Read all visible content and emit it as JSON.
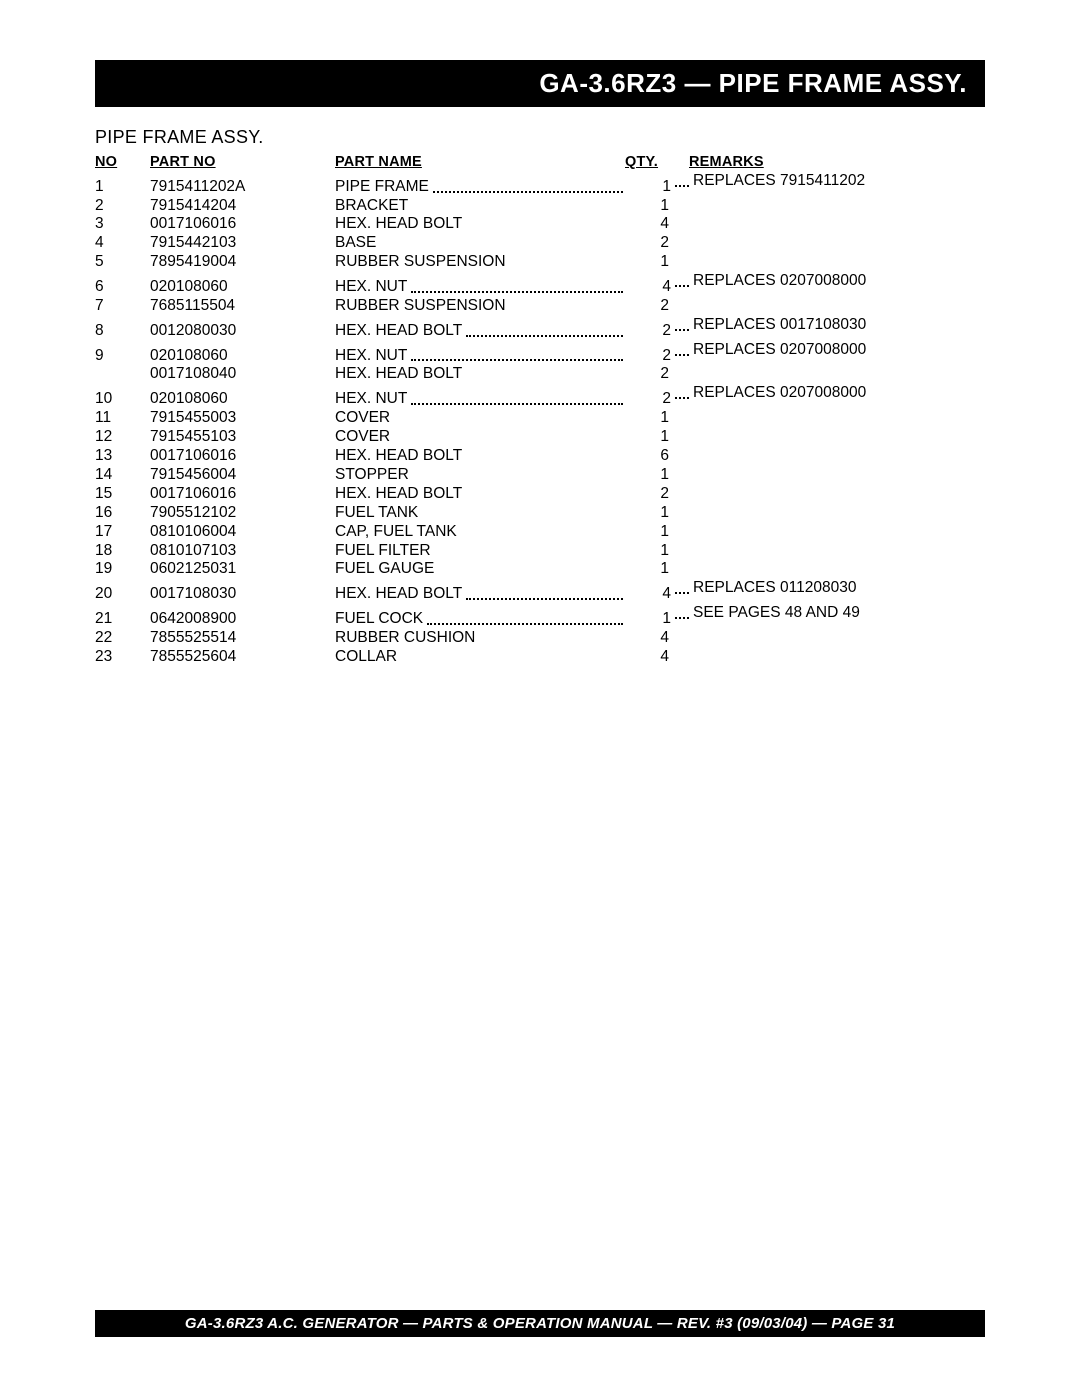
{
  "title_bar": "GA-3.6RZ3 — PIPE FRAME ASSY.",
  "subtitle": "PIPE FRAME ASSY.",
  "headers": {
    "no": "NO",
    "partno": "PART NO",
    "partname": "PART NAME",
    "qty": "QTY.",
    "remarks": "REMARKS"
  },
  "rows": [
    {
      "no": "1",
      "partno": "7915411202A",
      "name": "PIPE FRAME",
      "qty": "1",
      "remarks": "REPLACES 7915411202",
      "dotted": true
    },
    {
      "no": "2",
      "partno": "7915414204",
      "name": "BRACKET",
      "qty": "1",
      "remarks": "",
      "dotted": false
    },
    {
      "no": "3",
      "partno": "0017106016",
      "name": "HEX. HEAD BOLT",
      "qty": "4",
      "remarks": "",
      "dotted": false
    },
    {
      "no": "4",
      "partno": "7915442103",
      "name": "BASE",
      "qty": "2",
      "remarks": "",
      "dotted": false
    },
    {
      "no": "5",
      "partno": "7895419004",
      "name": "RUBBER SUSPENSION",
      "qty": "1",
      "remarks": "",
      "dotted": false
    },
    {
      "no": "6",
      "partno": "020108060",
      "name": "HEX. NUT",
      "qty": "4",
      "remarks": "REPLACES 0207008000",
      "dotted": true
    },
    {
      "no": "7",
      "partno": "7685115504",
      "name": "RUBBER SUSPENSION",
      "qty": "2",
      "remarks": "",
      "dotted": false
    },
    {
      "no": "8",
      "partno": "0012080030",
      "name": "HEX. HEAD BOLT",
      "qty": "2",
      "remarks": "REPLACES 0017108030",
      "dotted": true
    },
    {
      "no": "9",
      "partno": "020108060",
      "name": "HEX. NUT",
      "qty": "2",
      "remarks": "REPLACES 0207008000",
      "dotted": true
    },
    {
      "no": "",
      "partno": "0017108040",
      "name": "HEX. HEAD BOLT",
      "qty": "2",
      "remarks": "",
      "dotted": false
    },
    {
      "no": "10",
      "partno": "020108060",
      "name": "HEX. NUT",
      "qty": "2",
      "remarks": "REPLACES 0207008000",
      "dotted": true
    },
    {
      "no": "11",
      "partno": "7915455003",
      "name": "COVER",
      "qty": "1",
      "remarks": "",
      "dotted": false
    },
    {
      "no": "12",
      "partno": "7915455103",
      "name": "COVER",
      "qty": "1",
      "remarks": "",
      "dotted": false
    },
    {
      "no": "13",
      "partno": "0017106016",
      "name": "HEX. HEAD BOLT",
      "qty": "6",
      "remarks": "",
      "dotted": false
    },
    {
      "no": "14",
      "partno": "7915456004",
      "name": "STOPPER",
      "qty": "1",
      "remarks": "",
      "dotted": false
    },
    {
      "no": "15",
      "partno": "0017106016",
      "name": "HEX. HEAD BOLT",
      "qty": "2",
      "remarks": "",
      "dotted": false
    },
    {
      "no": "16",
      "partno": "7905512102",
      "name": "FUEL TANK",
      "qty": "1",
      "remarks": "",
      "dotted": false
    },
    {
      "no": "17",
      "partno": "0810106004",
      "name": "CAP, FUEL TANK",
      "qty": "1",
      "remarks": "",
      "dotted": false
    },
    {
      "no": "18",
      "partno": "0810107103",
      "name": "FUEL FILTER",
      "qty": "1",
      "remarks": "",
      "dotted": false
    },
    {
      "no": "19",
      "partno": "0602125031",
      "name": "FUEL GAUGE",
      "qty": "1",
      "remarks": "",
      "dotted": false
    },
    {
      "no": "20",
      "partno": "0017108030",
      "name": "HEX. HEAD BOLT",
      "qty": "4",
      "remarks": "REPLACES 011208030",
      "dotted": true
    },
    {
      "no": "21",
      "partno": "0642008900",
      "name": "FUEL COCK",
      "qty": "1",
      "remarks": "SEE PAGES 48 AND 49",
      "dotted": true
    },
    {
      "no": "22",
      "partno": "7855525514",
      "name": "RUBBER CUSHION",
      "qty": "4",
      "remarks": "",
      "dotted": false
    },
    {
      "no": "23",
      "partno": "7855525604",
      "name": "COLLAR",
      "qty": "4",
      "remarks": "",
      "dotted": false
    }
  ],
  "footer": "GA-3.6RZ3 A.C. GENERATOR — PARTS & OPERATION MANUAL — REV. #3  (09/03/04) — PAGE 31"
}
